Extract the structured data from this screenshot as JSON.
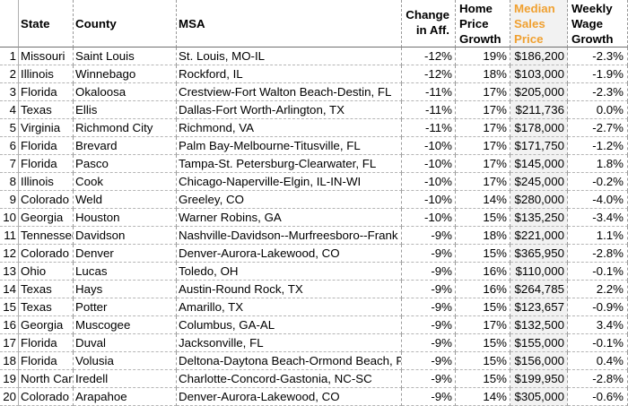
{
  "colors": {
    "accent_header": "#f0a030",
    "gridline": "#9a9a9a",
    "highlight_bg": "#f2f2f2"
  },
  "header": {
    "state": "State",
    "county": "County",
    "msa": "MSA",
    "change_aff_line1": "Change",
    "change_aff_line2": "in Aff.",
    "hpg_line1": "Home",
    "hpg_line2": "Price",
    "hpg_line3": "Growth",
    "mss_line1": "Median",
    "mss_line2": "Sales",
    "mss_line3": "Price",
    "wwg_line1": "Weekly",
    "wwg_line2": "Wage",
    "wwg_line3": "Growth"
  },
  "rows": [
    {
      "n": "1",
      "state": "Missouri",
      "county": "Saint Louis",
      "msa": "St. Louis, MO-IL",
      "change": "-12%",
      "hpg": "19%",
      "price": "$186,200",
      "wage": "-2.3%"
    },
    {
      "n": "2",
      "state": "Illinois",
      "county": "Winnebago",
      "msa": "Rockford, IL",
      "change": "-12%",
      "hpg": "18%",
      "price": "$103,000",
      "wage": "-1.9%"
    },
    {
      "n": "3",
      "state": "Florida",
      "county": "Okaloosa",
      "msa": "Crestview-Fort Walton Beach-Destin, FL",
      "change": "-11%",
      "hpg": "17%",
      "price": "$205,000",
      "wage": "-2.3%"
    },
    {
      "n": "4",
      "state": "Texas",
      "county": "Ellis",
      "msa": "Dallas-Fort Worth-Arlington, TX",
      "change": "-11%",
      "hpg": "17%",
      "price": "$211,736",
      "wage": "0.0%"
    },
    {
      "n": "5",
      "state": "Virginia",
      "county": "Richmond City",
      "msa": "Richmond, VA",
      "change": "-11%",
      "hpg": "17%",
      "price": "$178,000",
      "wage": "-2.7%"
    },
    {
      "n": "6",
      "state": "Florida",
      "county": "Brevard",
      "msa": "Palm Bay-Melbourne-Titusville, FL",
      "change": "-10%",
      "hpg": "17%",
      "price": "$171,750",
      "wage": "-1.2%"
    },
    {
      "n": "7",
      "state": "Florida",
      "county": "Pasco",
      "msa": "Tampa-St. Petersburg-Clearwater, FL",
      "change": "-10%",
      "hpg": "17%",
      "price": "$145,000",
      "wage": "1.8%"
    },
    {
      "n": "8",
      "state": "Illinois",
      "county": "Cook",
      "msa": "Chicago-Naperville-Elgin, IL-IN-WI",
      "change": "-10%",
      "hpg": "17%",
      "price": "$245,000",
      "wage": "-0.2%"
    },
    {
      "n": "9",
      "state": "Colorado",
      "county": "Weld",
      "msa": "Greeley, CO",
      "change": "-10%",
      "hpg": "14%",
      "price": "$280,000",
      "wage": "-4.0%"
    },
    {
      "n": "10",
      "state": "Georgia",
      "county": "Houston",
      "msa": "Warner Robins, GA",
      "change": "-10%",
      "hpg": "15%",
      "price": "$135,250",
      "wage": "-3.4%"
    },
    {
      "n": "11",
      "state": "Tennessee",
      "county": "Davidson",
      "msa": "Nashville-Davidson--Murfreesboro--Frank",
      "change": "-9%",
      "hpg": "18%",
      "price": "$221,000",
      "wage": "1.1%"
    },
    {
      "n": "12",
      "state": "Colorado",
      "county": "Denver",
      "msa": "Denver-Aurora-Lakewood, CO",
      "change": "-9%",
      "hpg": "15%",
      "price": "$365,950",
      "wage": "-2.8%"
    },
    {
      "n": "13",
      "state": "Ohio",
      "county": "Lucas",
      "msa": "Toledo, OH",
      "change": "-9%",
      "hpg": "16%",
      "price": "$110,000",
      "wage": "-0.1%"
    },
    {
      "n": "14",
      "state": "Texas",
      "county": "Hays",
      "msa": "Austin-Round Rock, TX",
      "change": "-9%",
      "hpg": "16%",
      "price": "$264,785",
      "wage": "2.2%"
    },
    {
      "n": "15",
      "state": "Texas",
      "county": "Potter",
      "msa": "Amarillo, TX",
      "change": "-9%",
      "hpg": "15%",
      "price": "$123,657",
      "wage": "-0.9%"
    },
    {
      "n": "16",
      "state": "Georgia",
      "county": "Muscogee",
      "msa": "Columbus, GA-AL",
      "change": "-9%",
      "hpg": "17%",
      "price": "$132,500",
      "wage": "3.4%"
    },
    {
      "n": "17",
      "state": "Florida",
      "county": "Duval",
      "msa": "Jacksonville, FL",
      "change": "-9%",
      "hpg": "15%",
      "price": "$155,000",
      "wage": "-0.1%"
    },
    {
      "n": "18",
      "state": "Florida",
      "county": "Volusia",
      "msa": "Deltona-Daytona Beach-Ormond Beach, F",
      "change": "-9%",
      "hpg": "15%",
      "price": "$156,000",
      "wage": "0.4%"
    },
    {
      "n": "19",
      "state": "North Car",
      "county": "Iredell",
      "msa": "Charlotte-Concord-Gastonia, NC-SC",
      "change": "-9%",
      "hpg": "15%",
      "price": "$199,950",
      "wage": "-2.8%"
    },
    {
      "n": "20",
      "state": "Colorado",
      "county": "Arapahoe",
      "msa": "Denver-Aurora-Lakewood, CO",
      "change": "-9%",
      "hpg": "14%",
      "price": "$305,000",
      "wage": "-0.6%"
    }
  ]
}
